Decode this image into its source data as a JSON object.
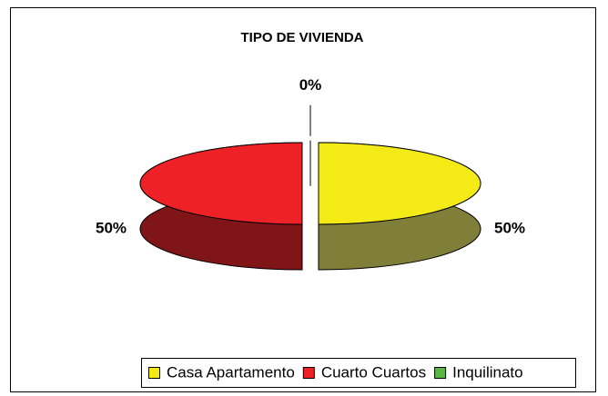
{
  "chart_data": {
    "type": "pie",
    "title": "TIPO DE VIVIENDA",
    "categories": [
      "Casa Apartamento",
      "Cuarto Cuartos",
      "Inquilinato"
    ],
    "values": [
      50,
      50,
      0
    ],
    "value_labels": [
      "50%",
      "50%",
      "0%"
    ],
    "colors": [
      "#f3ea16",
      "#ee2226",
      "#5cb646"
    ],
    "side_colors": [
      "#7f7f3a",
      "#7f1517",
      "#2f6a25"
    ],
    "legend": "bottom"
  }
}
